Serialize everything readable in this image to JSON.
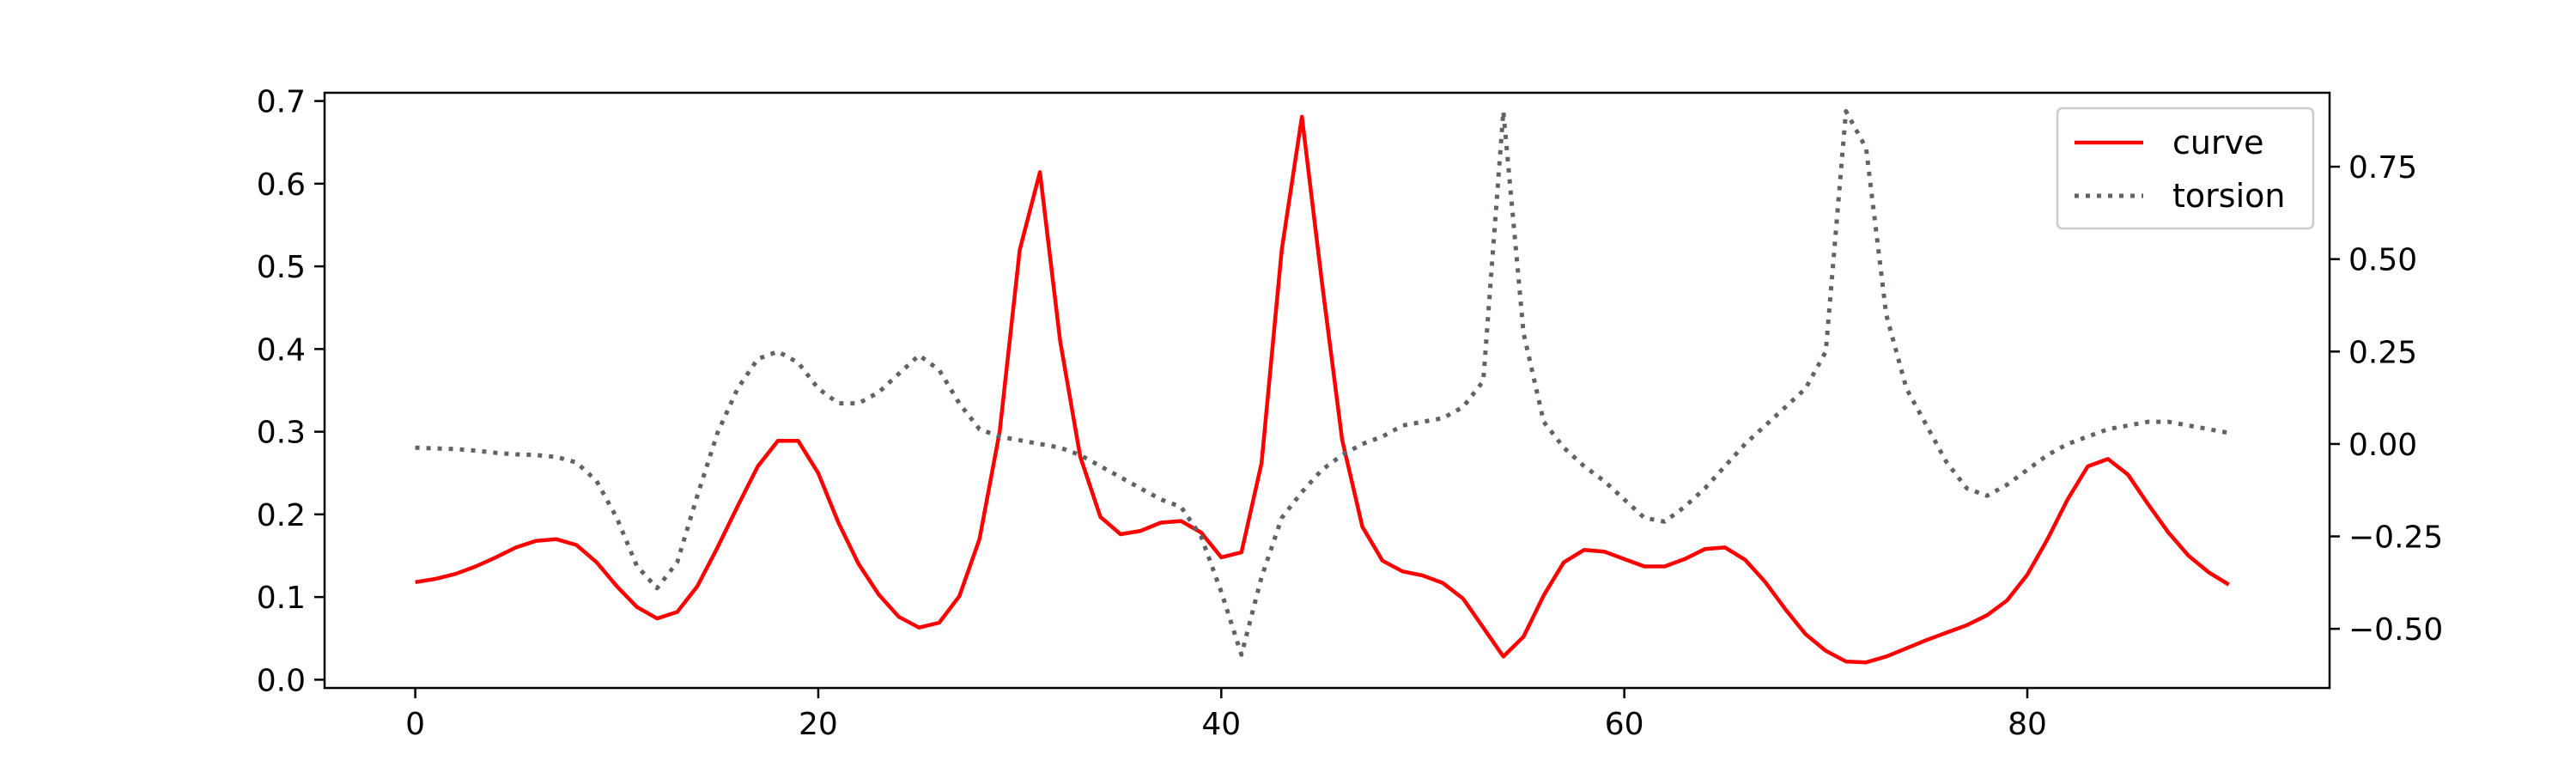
{
  "chart_data": {
    "type": "line",
    "title": "",
    "xlabel": "",
    "ylabel_left": "",
    "ylabel_right": "",
    "xlim": [
      -4.5,
      95
    ],
    "ylim_left": [
      -0.01,
      0.71
    ],
    "ylim_right": [
      -0.66,
      0.95
    ],
    "x_ticks": [
      0,
      20,
      40,
      60,
      80
    ],
    "x_tick_labels": [
      "0",
      "20",
      "40",
      "60",
      "80"
    ],
    "y_left_ticks": [
      0.0,
      0.1,
      0.2,
      0.3,
      0.4,
      0.5,
      0.6,
      0.7
    ],
    "y_left_tick_labels": [
      "0.0",
      "0.1",
      "0.2",
      "0.3",
      "0.4",
      "0.5",
      "0.6",
      "0.7"
    ],
    "y_right_ticks": [
      -0.5,
      -0.25,
      0.0,
      0.25,
      0.5,
      0.75
    ],
    "y_right_tick_labels": [
      "−0.50",
      "−0.25",
      "0.00",
      "0.25",
      "0.50",
      "0.75"
    ],
    "grid": false,
    "legend_position": "top-right",
    "series": [
      {
        "name": "curve",
        "axis": "left",
        "color": "#ff0000",
        "style": "solid",
        "x": [
          0,
          1,
          2,
          3,
          4,
          5,
          6,
          7,
          8,
          9,
          10,
          11,
          12,
          13,
          14,
          15,
          16,
          17,
          18,
          19,
          20,
          21,
          22,
          23,
          24,
          25,
          26,
          27,
          28,
          29,
          30,
          31,
          32,
          33,
          34,
          35,
          36,
          37,
          38,
          39,
          40,
          41,
          42,
          43,
          44,
          45,
          46,
          47,
          48,
          49,
          50,
          51,
          52,
          53,
          54,
          55,
          56,
          57,
          58,
          59,
          60,
          61,
          62,
          63,
          64,
          65,
          66,
          67,
          68,
          69,
          70,
          71,
          72,
          73,
          74,
          75,
          76,
          77,
          78,
          79,
          80,
          81,
          82,
          83,
          84,
          85,
          86,
          87,
          88,
          89,
          90
        ],
        "values": [
          0.118,
          0.122,
          0.128,
          0.137,
          0.148,
          0.16,
          0.168,
          0.17,
          0.163,
          0.142,
          0.113,
          0.088,
          0.074,
          0.082,
          0.113,
          0.16,
          0.21,
          0.258,
          0.289,
          0.289,
          0.25,
          0.19,
          0.14,
          0.103,
          0.076,
          0.063,
          0.069,
          0.101,
          0.17,
          0.3,
          0.52,
          0.614,
          0.41,
          0.27,
          0.197,
          0.176,
          0.18,
          0.19,
          0.192,
          0.178,
          0.148,
          0.154,
          0.262,
          0.52,
          0.681,
          0.48,
          0.29,
          0.185,
          0.144,
          0.131,
          0.126,
          0.117,
          0.098,
          0.063,
          0.028,
          0.052,
          0.102,
          0.142,
          0.157,
          0.155,
          0.146,
          0.137,
          0.137,
          0.146,
          0.158,
          0.16,
          0.145,
          0.118,
          0.085,
          0.055,
          0.035,
          0.022,
          0.021,
          0.028,
          0.038,
          0.048,
          0.057,
          0.066,
          0.078,
          0.096,
          0.127,
          0.17,
          0.218,
          0.258,
          0.267,
          0.248,
          0.212,
          0.178,
          0.15,
          0.13,
          0.115
        ]
      },
      {
        "name": "torsion",
        "axis": "right",
        "color": "#5f6368",
        "style": "dotted",
        "x": [
          0,
          1,
          2,
          3,
          4,
          5,
          6,
          7,
          8,
          9,
          10,
          11,
          12,
          13,
          14,
          15,
          16,
          17,
          18,
          19,
          20,
          21,
          22,
          23,
          24,
          25,
          26,
          27,
          28,
          29,
          30,
          31,
          32,
          33,
          34,
          35,
          36,
          37,
          38,
          39,
          40,
          41,
          42,
          43,
          44,
          45,
          46,
          47,
          48,
          49,
          50,
          51,
          52,
          53,
          54,
          55,
          56,
          57,
          58,
          59,
          60,
          61,
          62,
          63,
          64,
          65,
          66,
          67,
          68,
          69,
          70,
          71,
          72,
          73,
          74,
          75,
          76,
          77,
          78,
          79,
          80,
          81,
          82,
          83,
          84,
          85,
          86,
          87,
          88,
          89,
          90
        ],
        "values": [
          -0.01,
          -0.012,
          -0.014,
          -0.018,
          -0.024,
          -0.028,
          -0.03,
          -0.035,
          -0.05,
          -0.1,
          -0.2,
          -0.33,
          -0.39,
          -0.32,
          -0.14,
          0.03,
          0.15,
          0.23,
          0.25,
          0.22,
          0.15,
          0.11,
          0.11,
          0.14,
          0.19,
          0.24,
          0.2,
          0.11,
          0.04,
          0.02,
          0.01,
          0.0,
          -0.01,
          -0.03,
          -0.06,
          -0.09,
          -0.12,
          -0.15,
          -0.17,
          -0.25,
          -0.4,
          -0.57,
          -0.36,
          -0.2,
          -0.13,
          -0.07,
          -0.03,
          0.0,
          0.02,
          0.05,
          0.06,
          0.07,
          0.1,
          0.17,
          0.9,
          0.3,
          0.06,
          -0.01,
          -0.06,
          -0.1,
          -0.15,
          -0.2,
          -0.21,
          -0.17,
          -0.12,
          -0.06,
          0.0,
          0.05,
          0.1,
          0.15,
          0.25,
          0.9,
          0.8,
          0.35,
          0.15,
          0.05,
          -0.05,
          -0.12,
          -0.14,
          -0.11,
          -0.07,
          -0.03,
          0.0,
          0.02,
          0.04,
          0.05,
          0.06,
          0.06,
          0.05,
          0.04,
          0.03
        ]
      }
    ]
  }
}
